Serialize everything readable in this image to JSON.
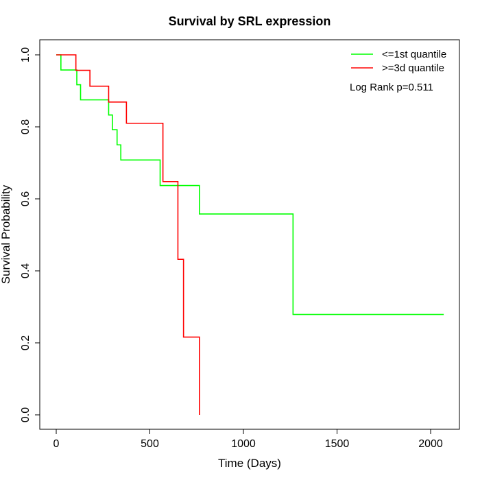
{
  "chart_data": {
    "type": "line",
    "title": "Survival by SRL expression",
    "xlabel": "Time (Days)",
    "ylabel": "Survival Probability",
    "xlim": [
      0,
      2070
    ],
    "ylim": [
      0,
      1
    ],
    "x_ticks": [
      0,
      500,
      1000,
      1500,
      2000
    ],
    "x_tick_labels": [
      "0",
      "500",
      "1000",
      "1500",
      "2000"
    ],
    "y_ticks": [
      0,
      0.2,
      0.4,
      0.6,
      0.8,
      1
    ],
    "y_tick_labels": [
      "0.0",
      "0.2",
      "0.4",
      "0.6",
      "0.8",
      "1.0"
    ],
    "grid": false,
    "legend_position": "top-right",
    "annotation": "Log Rank p=0.511",
    "series": [
      {
        "name": "<=1st quantile",
        "color": "#00ff00",
        "steps": [
          [
            0,
            1.0
          ],
          [
            25,
            0.958
          ],
          [
            110,
            0.917
          ],
          [
            130,
            0.875
          ],
          [
            280,
            0.833
          ],
          [
            300,
            0.792
          ],
          [
            325,
            0.75
          ],
          [
            345,
            0.708
          ],
          [
            555,
            0.637
          ],
          [
            765,
            0.558
          ],
          [
            1265,
            0.279
          ],
          [
            2070,
            0.279
          ]
        ]
      },
      {
        "name": ">=3d quantile",
        "color": "#ff0000",
        "steps": [
          [
            0,
            1.0
          ],
          [
            105,
            0.957
          ],
          [
            180,
            0.913
          ],
          [
            280,
            0.869
          ],
          [
            375,
            0.81
          ],
          [
            570,
            0.648
          ],
          [
            650,
            0.432
          ],
          [
            680,
            0.216
          ],
          [
            765,
            0.0
          ]
        ]
      }
    ]
  }
}
